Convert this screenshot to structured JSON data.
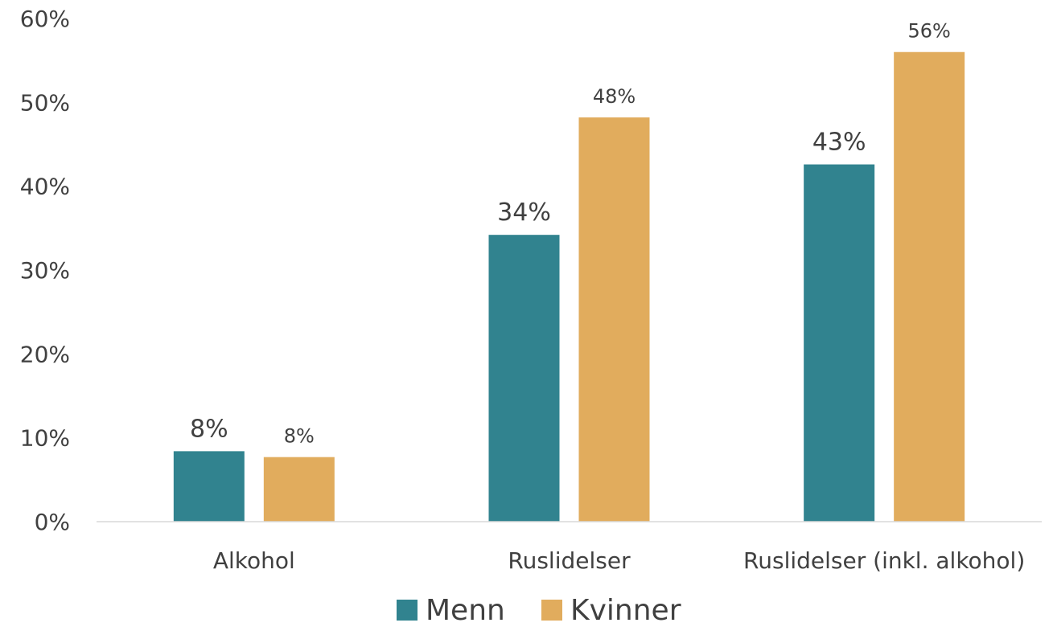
{
  "chart_data": {
    "type": "bar",
    "title": "",
    "xlabel": "",
    "ylabel": "",
    "categories": [
      "Alkohol",
      "Ruslidelser",
      "Ruslidelser (inkl. alkohol)"
    ],
    "series": [
      {
        "name": "Menn",
        "color": "#31838f",
        "values": [
          0.084,
          0.342,
          0.426
        ],
        "labels": [
          "8%",
          "34%",
          "43%"
        ]
      },
      {
        "name": "Kvinner",
        "color": "#e1ac5d",
        "values": [
          0.077,
          0.482,
          0.56
        ],
        "labels": [
          "8%",
          "48%",
          "56%"
        ]
      }
    ],
    "ylim": [
      0,
      0.6
    ],
    "yticks": [
      0,
      0.1,
      0.2,
      0.3,
      0.4,
      0.5,
      0.6
    ],
    "ytick_labels": [
      "0%",
      "10%",
      "20%",
      "30%",
      "40%",
      "50%",
      "60%"
    ],
    "grid": false,
    "legend_position": "bottom-center"
  }
}
